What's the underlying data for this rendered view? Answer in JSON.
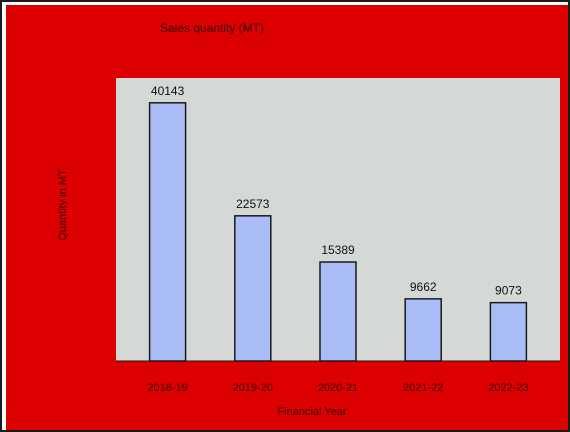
{
  "colors": {
    "background": "#dd0000",
    "plot_area": "#d5d9d6",
    "bar_fill": "#aabcf5",
    "bar_stroke": "#1a1a1a"
  },
  "chart_data": {
    "type": "bar",
    "title": "Sales quantity (MT)",
    "xlabel": "Financial Year",
    "ylabel": "Quantity in MT",
    "categories": [
      "2018-19",
      "2019-20",
      "2020-21",
      "2021-22",
      "2022-23"
    ],
    "values": [
      40143,
      22573,
      15389,
      9662,
      9073
    ],
    "ylim": [
      0,
      44000
    ],
    "grid": false,
    "legend": "none"
  }
}
